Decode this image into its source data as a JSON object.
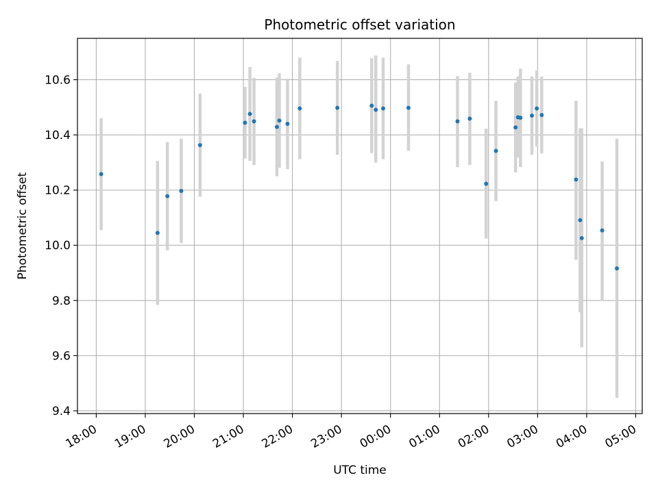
{
  "chart_data": {
    "type": "scatter",
    "title": "Photometric offset variation",
    "xlabel": "UTC time",
    "ylabel": "Photometric offset",
    "xlim": [
      "2000-01-01T17:37:00",
      "2000-01-02T05:08:00"
    ],
    "ylim": [
      9.39,
      10.75
    ],
    "x_ticks": [
      {
        "t": "2000-01-01T18:00",
        "label": "18:00"
      },
      {
        "t": "2000-01-01T19:00",
        "label": "19:00"
      },
      {
        "t": "2000-01-01T20:00",
        "label": "20:00"
      },
      {
        "t": "2000-01-01T21:00",
        "label": "21:00"
      },
      {
        "t": "2000-01-01T22:00",
        "label": "22:00"
      },
      {
        "t": "2000-01-01T23:00",
        "label": "23:00"
      },
      {
        "t": "2000-01-02T00:00",
        "label": "00:00"
      },
      {
        "t": "2000-01-02T01:00",
        "label": "01:00"
      },
      {
        "t": "2000-01-02T02:00",
        "label": "02:00"
      },
      {
        "t": "2000-01-02T03:00",
        "label": "03:00"
      },
      {
        "t": "2000-01-02T04:00",
        "label": "04:00"
      },
      {
        "t": "2000-01-02T05:00",
        "label": "05:00"
      }
    ],
    "y_ticks": [
      {
        "v": 9.4,
        "label": "9.4"
      },
      {
        "v": 9.6,
        "label": "9.6"
      },
      {
        "v": 9.8,
        "label": "9.8"
      },
      {
        "v": 10.0,
        "label": "10.0"
      },
      {
        "v": 10.2,
        "label": "10.2"
      },
      {
        "v": 10.4,
        "label": "10.4"
      },
      {
        "v": 10.6,
        "label": "10.6"
      }
    ],
    "grid": true,
    "marker_color": "#1f77b4",
    "errorbar_color": "#d3d3d3",
    "points": [
      {
        "t": "2000-01-01T18:06",
        "y": 10.258,
        "ylo": 10.055,
        "yhi": 10.461
      },
      {
        "t": "2000-01-01T19:15",
        "y": 10.045,
        "ylo": 9.784,
        "yhi": 10.306
      },
      {
        "t": "2000-01-01T19:27",
        "y": 10.178,
        "ylo": 9.982,
        "yhi": 10.374
      },
      {
        "t": "2000-01-01T19:44",
        "y": 10.197,
        "ylo": 10.008,
        "yhi": 10.386
      },
      {
        "t": "2000-01-01T20:07",
        "y": 10.363,
        "ylo": 10.176,
        "yhi": 10.55
      },
      {
        "t": "2000-01-01T21:02",
        "y": 10.444,
        "ylo": 10.314,
        "yhi": 10.574
      },
      {
        "t": "2000-01-01T21:08",
        "y": 10.476,
        "ylo": 10.306,
        "yhi": 10.646
      },
      {
        "t": "2000-01-01T21:13",
        "y": 10.449,
        "ylo": 10.291,
        "yhi": 10.607
      },
      {
        "t": "2000-01-01T21:41",
        "y": 10.429,
        "ylo": 10.25,
        "yhi": 10.608
      },
      {
        "t": "2000-01-01T21:44",
        "y": 10.452,
        "ylo": 10.281,
        "yhi": 10.623
      },
      {
        "t": "2000-01-01T21:54",
        "y": 10.44,
        "ylo": 10.276,
        "yhi": 10.604
      },
      {
        "t": "2000-01-01T22:09",
        "y": 10.496,
        "ylo": 10.312,
        "yhi": 10.68
      },
      {
        "t": "2000-01-01T22:55",
        "y": 10.498,
        "ylo": 10.328,
        "yhi": 10.668
      },
      {
        "t": "2000-01-01T23:37",
        "y": 10.506,
        "ylo": 10.334,
        "yhi": 10.678
      },
      {
        "t": "2000-01-01T23:42",
        "y": 10.491,
        "ylo": 10.3,
        "yhi": 10.688
      },
      {
        "t": "2000-01-01T23:51",
        "y": 10.496,
        "ylo": 10.312,
        "yhi": 10.68
      },
      {
        "t": "2000-01-02T00:22",
        "y": 10.498,
        "ylo": 10.342,
        "yhi": 10.656
      },
      {
        "t": "2000-01-02T01:22",
        "y": 10.449,
        "ylo": 10.283,
        "yhi": 10.613
      },
      {
        "t": "2000-01-02T01:37",
        "y": 10.459,
        "ylo": 10.291,
        "yhi": 10.625
      },
      {
        "t": "2000-01-02T01:57",
        "y": 10.223,
        "ylo": 10.024,
        "yhi": 10.423
      },
      {
        "t": "2000-01-02T02:09",
        "y": 10.342,
        "ylo": 10.16,
        "yhi": 10.524
      },
      {
        "t": "2000-01-02T02:33",
        "y": 10.427,
        "ylo": 10.264,
        "yhi": 10.59
      },
      {
        "t": "2000-01-02T02:36",
        "y": 10.464,
        "ylo": 10.318,
        "yhi": 10.612
      },
      {
        "t": "2000-01-02T02:39",
        "y": 10.462,
        "ylo": 10.283,
        "yhi": 10.64
      },
      {
        "t": "2000-01-02T02:53",
        "y": 10.47,
        "ylo": 10.328,
        "yhi": 10.612
      },
      {
        "t": "2000-01-02T02:59",
        "y": 10.496,
        "ylo": 10.358,
        "yhi": 10.634
      },
      {
        "t": "2000-01-02T03:05",
        "y": 10.472,
        "ylo": 10.333,
        "yhi": 10.612
      },
      {
        "t": "2000-01-02T03:47",
        "y": 10.238,
        "ylo": 9.947,
        "yhi": 10.524
      },
      {
        "t": "2000-01-02T03:52",
        "y": 10.091,
        "ylo": 9.757,
        "yhi": 10.424
      },
      {
        "t": "2000-01-02T03:54",
        "y": 10.026,
        "ylo": 9.63,
        "yhi": 10.424
      },
      {
        "t": "2000-01-02T04:19",
        "y": 10.054,
        "ylo": 9.8,
        "yhi": 10.304
      },
      {
        "t": "2000-01-02T04:37",
        "y": 9.916,
        "ylo": 9.447,
        "yhi": 10.386
      }
    ]
  }
}
